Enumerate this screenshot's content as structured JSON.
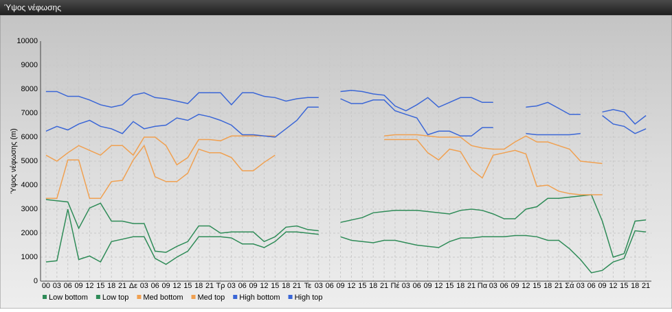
{
  "chart_data": {
    "type": "line",
    "title": "Ύψος νέφωσης",
    "ylabel": "Ύψος νέφωσης (m)",
    "categories": [
      "00",
      "03",
      "06",
      "09",
      "12",
      "15",
      "18",
      "21",
      "Δε",
      "03",
      "06",
      "09",
      "12",
      "15",
      "18",
      "21",
      "Τρ",
      "03",
      "06",
      "09",
      "12",
      "15",
      "18",
      "21",
      "Τε",
      "03",
      "06",
      "09",
      "12",
      "15",
      "18",
      "21",
      "Πέ",
      "03",
      "06",
      "09",
      "12",
      "15",
      "18",
      "21",
      "Πα",
      "03",
      "06",
      "09",
      "12",
      "15",
      "18",
      "21",
      "Σά",
      "03",
      "06",
      "09",
      "12",
      "15",
      "18",
      "21"
    ],
    "series": [
      {
        "name": "Low bottom",
        "color": "#2e8b57",
        "values": [
          800,
          850,
          3000,
          900,
          1050,
          800,
          1650,
          1750,
          1850,
          1850,
          950,
          700,
          1000,
          1250,
          1850,
          1850,
          1850,
          1800,
          1550,
          1550,
          1400,
          1650,
          2050,
          2050,
          2000,
          1950,
          null,
          1850,
          1700,
          1650,
          1600,
          1700,
          1700,
          1600,
          1500,
          1450,
          1400,
          1650,
          1800,
          1800,
          1850,
          1850,
          1850,
          1900,
          1900,
          1850,
          1700,
          1700,
          1350,
          900,
          350,
          450,
          800,
          950,
          2100,
          2050
        ]
      },
      {
        "name": "Low top",
        "color": "#2e8b57",
        "values": [
          3400,
          3350,
          3300,
          2200,
          3050,
          3250,
          2500,
          2500,
          2400,
          2400,
          1250,
          1200,
          1450,
          1650,
          2300,
          2300,
          2000,
          2050,
          2050,
          2050,
          1650,
          1850,
          2250,
          2300,
          2150,
          2100,
          null,
          2450,
          2550,
          2650,
          2850,
          2900,
          2950,
          2950,
          2950,
          2900,
          2850,
          2800,
          2950,
          3000,
          2950,
          2800,
          2600,
          2600,
          3000,
          3100,
          3450,
          3450,
          3500,
          3550,
          3600,
          2500,
          1000,
          1150,
          2500,
          2550
        ]
      },
      {
        "name": "Med bottom",
        "color": "#f0a050",
        "values": [
          3450,
          3450,
          5050,
          5050,
          3450,
          3450,
          4150,
          4200,
          5050,
          5650,
          4350,
          4150,
          4150,
          4500,
          5500,
          5350,
          5350,
          5150,
          4600,
          4600,
          4950,
          5250,
          null,
          null,
          null,
          null,
          null,
          null,
          null,
          null,
          null,
          5900,
          5900,
          5900,
          5900,
          5350,
          5050,
          5500,
          5400,
          4650,
          4300,
          5250,
          5350,
          5450,
          5300,
          3950,
          4000,
          3750,
          3650,
          3600,
          3600,
          3600,
          null,
          null,
          null,
          null
        ]
      },
      {
        "name": "Med top",
        "color": "#f0a050",
        "values": [
          5250,
          5000,
          5350,
          5650,
          5450,
          5250,
          5650,
          5650,
          5250,
          6000,
          6000,
          5650,
          4850,
          5150,
          5900,
          5900,
          5850,
          6050,
          6050,
          6050,
          6050,
          6050,
          null,
          null,
          null,
          null,
          null,
          null,
          null,
          null,
          null,
          6050,
          6100,
          6100,
          6100,
          6050,
          6000,
          6000,
          6000,
          5650,
          5550,
          5500,
          5500,
          5800,
          6050,
          5800,
          5800,
          5650,
          5500,
          5000,
          4950,
          4900,
          null,
          null,
          null,
          null
        ]
      },
      {
        "name": "High bottom",
        "color": "#3a66d6",
        "values": [
          6250,
          6450,
          6300,
          6550,
          6700,
          6450,
          6350,
          6150,
          6650,
          6350,
          6450,
          6500,
          6800,
          6700,
          6950,
          6850,
          6700,
          6500,
          6100,
          6100,
          6050,
          6000,
          6350,
          6700,
          7250,
          7250,
          null,
          7600,
          7400,
          7400,
          7550,
          7550,
          7100,
          6950,
          6800,
          6100,
          6250,
          6250,
          6050,
          6050,
          6400,
          6400,
          null,
          null,
          6150,
          6100,
          6100,
          6100,
          6100,
          6150,
          null,
          6900,
          6550,
          6450,
          6150,
          6350
        ]
      },
      {
        "name": "High top",
        "color": "#3a66d6",
        "values": [
          7900,
          7900,
          7700,
          7700,
          7550,
          7350,
          7250,
          7350,
          7750,
          7850,
          7650,
          7600,
          7500,
          7400,
          7850,
          7850,
          7850,
          7350,
          7850,
          7850,
          7700,
          7650,
          7500,
          7600,
          7650,
          7650,
          null,
          7900,
          7950,
          7900,
          7800,
          7750,
          7300,
          7100,
          7350,
          7650,
          7250,
          7450,
          7650,
          7650,
          7450,
          7450,
          null,
          null,
          7250,
          7300,
          7450,
          7200,
          6950,
          6950,
          null,
          7050,
          7150,
          7050,
          6550,
          6900
        ]
      }
    ],
    "ylim": [
      0,
      10000
    ],
    "yticks": [
      0,
      1000,
      2000,
      3000,
      4000,
      5000,
      6000,
      7000,
      8000,
      9000,
      10000
    ],
    "grid": true
  }
}
